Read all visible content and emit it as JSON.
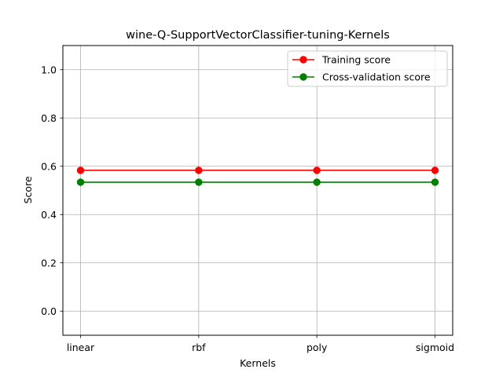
{
  "chart_data": {
    "type": "line",
    "title": "wine-Q-SupportVectorClassifier-tuning-Kernels",
    "xlabel": "Kernels",
    "ylabel": "Score",
    "categories": [
      "linear",
      "rbf",
      "poly",
      "sigmoid"
    ],
    "ylim": [
      -0.1,
      1.1
    ],
    "yticks": [
      0.0,
      0.2,
      0.4,
      0.6,
      0.8,
      1.0
    ],
    "ytick_labels": [
      "0.0",
      "0.2",
      "0.4",
      "0.6",
      "0.8",
      "1.0"
    ],
    "grid": true,
    "legend_position": "top-right",
    "series": [
      {
        "name": "Training score",
        "color": "#ff0000",
        "marker": "circle",
        "values": [
          0.583,
          0.583,
          0.583,
          0.583
        ]
      },
      {
        "name": "Cross-validation score",
        "color": "#008000",
        "marker": "circle",
        "values": [
          0.534,
          0.534,
          0.534,
          0.534
        ]
      }
    ]
  }
}
